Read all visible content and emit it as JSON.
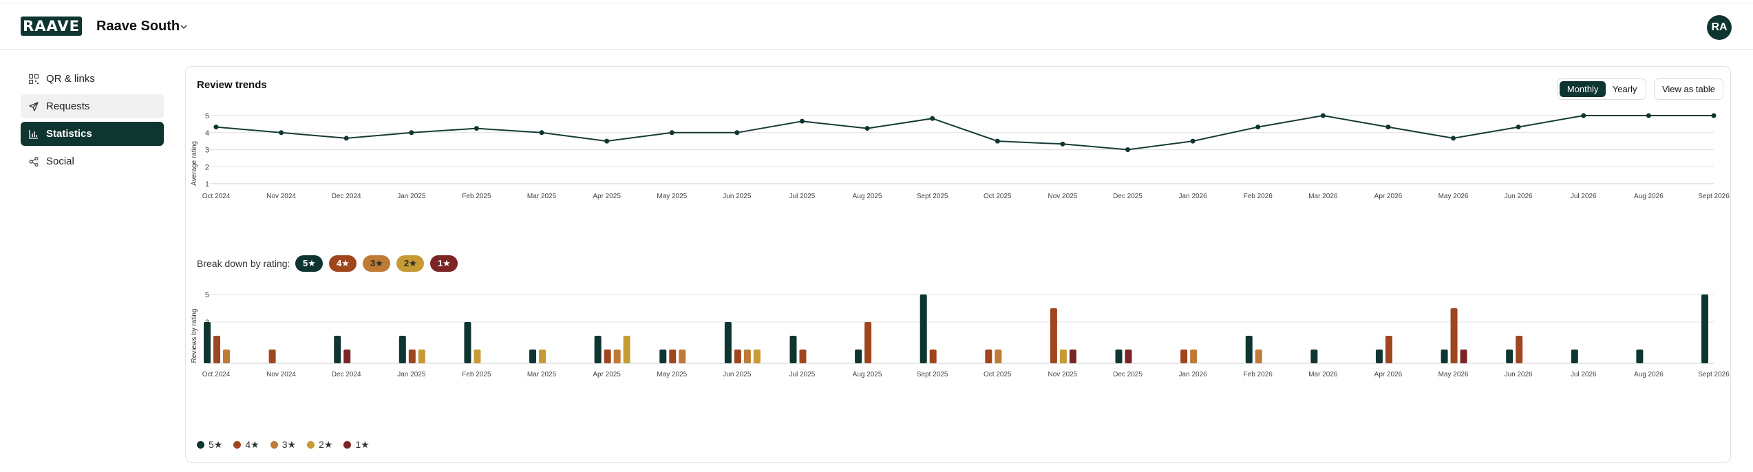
{
  "header": {
    "logo_text": "RAAVE",
    "org_name": "Raave South",
    "avatar_initials": "RA"
  },
  "sidebar": {
    "items": [
      {
        "label": "QR & links",
        "icon": "qr-code-icon",
        "state": "normal"
      },
      {
        "label": "Requests",
        "icon": "send-icon",
        "state": "hover"
      },
      {
        "label": "Statistics",
        "icon": "bar-chart-icon",
        "state": "active"
      },
      {
        "label": "Social",
        "icon": "share-icon",
        "state": "normal"
      }
    ]
  },
  "card": {
    "title": "Review trends",
    "toggle": {
      "monthly": "Monthly",
      "yearly": "Yearly",
      "selected": "Monthly"
    },
    "view_table": "View as table",
    "breakdown_label": "Break down by rating:"
  },
  "colors": {
    "5": "#0f3531",
    "4": "#a0461f",
    "3": "#bf7a35",
    "2": "#c69a35",
    "1": "#7c2426"
  },
  "legend": [
    "5★",
    "4★",
    "3★",
    "2★",
    "1★"
  ],
  "chart_data": [
    {
      "type": "line",
      "ylabel": "Average rating",
      "ylim": [
        1,
        5
      ],
      "yticks": [
        1,
        2,
        3,
        4,
        5
      ],
      "grid": true,
      "x": [
        "Oct 2024",
        "Nov 2024",
        "Dec 2024",
        "Jan 2025",
        "Feb 2025",
        "Mar 2025",
        "Apr 2025",
        "May 2025",
        "Jun 2025",
        "Jul 2025",
        "Aug 2025",
        "Sept 2025",
        "Oct 2025",
        "Nov 2025",
        "Dec 2025",
        "Jan 2026",
        "Feb 2026",
        "Mar 2026",
        "Apr 2026",
        "May 2026",
        "Jun 2026",
        "Jul 2026",
        "Aug 2026",
        "Sept 2026"
      ],
      "values": [
        4.33,
        4.0,
        3.67,
        4.0,
        4.25,
        4.0,
        3.5,
        4.0,
        4.0,
        4.67,
        4.25,
        4.83,
        3.5,
        3.33,
        3.0,
        3.5,
        4.33,
        5.0,
        4.33,
        3.67,
        4.33,
        5.0,
        5.0,
        5.0
      ]
    },
    {
      "type": "bar",
      "ylabel": "Reviews by rating",
      "ylim": [
        0,
        5
      ],
      "yticks": [
        3,
        5
      ],
      "grid": true,
      "categories": [
        "Oct 2024",
        "Nov 2024",
        "Dec 2024",
        "Jan 2025",
        "Feb 2025",
        "Mar 2025",
        "Apr 2025",
        "May 2025",
        "Jun 2025",
        "Jul 2025",
        "Aug 2025",
        "Sept 2025",
        "Oct 2025",
        "Nov 2025",
        "Dec 2025",
        "Jan 2026",
        "Feb 2026",
        "Mar 2026",
        "Apr 2026",
        "May 2026",
        "Jun 2026",
        "Jul 2026",
        "Aug 2026",
        "Sept 2026"
      ],
      "series": [
        {
          "name": "5★",
          "values": [
            3,
            0,
            2,
            2,
            3,
            1,
            2,
            1,
            3,
            2,
            1,
            5,
            0,
            0,
            1,
            0,
            2,
            1,
            1,
            1,
            1,
            1,
            1,
            5
          ]
        },
        {
          "name": "4★",
          "values": [
            2,
            1,
            0,
            1,
            0,
            0,
            1,
            1,
            1,
            1,
            3,
            1,
            1,
            4,
            0,
            1,
            0,
            0,
            2,
            4,
            2,
            0,
            0,
            0
          ]
        },
        {
          "name": "3★",
          "values": [
            1,
            0,
            0,
            0,
            0,
            0,
            1,
            1,
            1,
            0,
            0,
            0,
            1,
            0,
            0,
            1,
            1,
            0,
            0,
            0,
            0,
            0,
            0,
            0
          ]
        },
        {
          "name": "2★",
          "values": [
            0,
            0,
            0,
            1,
            1,
            1,
            2,
            0,
            1,
            0,
            0,
            0,
            0,
            1,
            0,
            0,
            0,
            0,
            0,
            0,
            0,
            0,
            0,
            0
          ]
        },
        {
          "name": "1★",
          "values": [
            0,
            0,
            1,
            0,
            0,
            0,
            0,
            0,
            0,
            0,
            0,
            0,
            0,
            1,
            1,
            0,
            0,
            0,
            0,
            1,
            0,
            0,
            0,
            0
          ]
        }
      ]
    }
  ]
}
